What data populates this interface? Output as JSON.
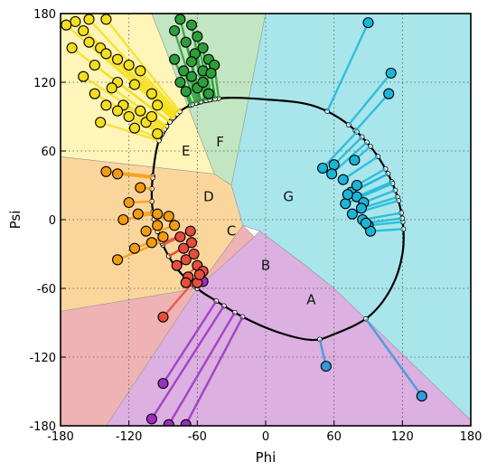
{
  "chart_data": {
    "type": "scatter",
    "xlabel": "Phi",
    "ylabel": "Psi",
    "xlim": [
      -180,
      180
    ],
    "ylim": [
      -180,
      180
    ],
    "xticks": [
      "-180",
      "-120",
      "-60",
      "0",
      "60",
      "120",
      "180"
    ],
    "yticks": [
      "-180",
      "-120",
      "-60",
      "0",
      "60",
      "120",
      "180"
    ],
    "grid": true,
    "regions": [
      {
        "label": "A",
        "color": "#b3d6f7",
        "label_at": [
          40,
          -70
        ],
        "polygon": [
          [
            -60,
            -60
          ],
          [
            180,
            -175
          ],
          [
            180,
            -180
          ],
          [
            -180,
            -180
          ],
          [
            -180,
            -100
          ]
        ]
      },
      {
        "label": "B",
        "color": "#dcb0e0",
        "label_at": [
          0,
          -40
        ],
        "polygon": [
          [
            -60,
            -60
          ],
          [
            -10,
            -15
          ],
          [
            -5,
            -10
          ],
          [
            35,
            -40
          ],
          [
            60,
            -60
          ],
          [
            180,
            -175
          ],
          [
            180,
            -180
          ],
          [
            -180,
            -180
          ],
          [
            -180,
            -100
          ]
        ]
      },
      {
        "label": "C",
        "color": "#f0b3b3",
        "label_at": [
          -30,
          -10
        ],
        "polygon": [
          [
            -60,
            -60
          ],
          [
            -20,
            -5
          ],
          [
            -10,
            -15
          ],
          [
            -60,
            -60
          ],
          [
            -140,
            -180
          ],
          [
            -180,
            -180
          ],
          [
            -180,
            -80
          ]
        ]
      },
      {
        "label": "D",
        "color": "#fbd69c",
        "label_at": [
          -50,
          20
        ],
        "polygon": [
          [
            -60,
            -60
          ],
          [
            -20,
            -5
          ],
          [
            -30,
            30
          ],
          [
            -45,
            40
          ],
          [
            -180,
            55
          ],
          [
            -180,
            -80
          ]
        ]
      },
      {
        "label": "E",
        "color": "#fff5b8",
        "label_at": [
          -70,
          60
        ],
        "polygon": [
          [
            -45,
            40
          ],
          [
            -100,
            180
          ],
          [
            -180,
            180
          ],
          [
            -180,
            55
          ]
        ]
      },
      {
        "label": "F",
        "color": "#c1e6c1",
        "label_at": [
          -40,
          68
        ],
        "polygon": [
          [
            -45,
            40
          ],
          [
            -100,
            180
          ],
          [
            0,
            180
          ],
          [
            -30,
            30
          ]
        ]
      },
      {
        "label": "G",
        "color": "#a8e6ec",
        "label_at": [
          20,
          20
        ],
        "polygon": [
          [
            -30,
            30
          ],
          [
            0,
            180
          ],
          [
            180,
            180
          ],
          [
            180,
            -175
          ],
          [
            60,
            -60
          ],
          [
            35,
            -40
          ],
          [
            -5,
            -10
          ],
          [
            -20,
            -5
          ]
        ]
      }
    ],
    "series": [
      {
        "color": "#1ab6d9",
        "points": [
          [
            90,
            172
          ],
          [
            110,
            128
          ],
          [
            108,
            110
          ],
          [
            60,
            48
          ],
          [
            50,
            45
          ],
          [
            58,
            40
          ],
          [
            68,
            35
          ],
          [
            78,
            52
          ],
          [
            75,
            24
          ],
          [
            80,
            20
          ],
          [
            86,
            15
          ],
          [
            84,
            10
          ],
          [
            76,
            5
          ],
          [
            85,
            0
          ],
          [
            90,
            -5
          ],
          [
            92,
            -10
          ],
          [
            88,
            -3
          ],
          [
            70,
            14
          ],
          [
            72,
            22
          ],
          [
            80,
            30
          ]
        ]
      },
      {
        "color": "#3498db",
        "points": [
          [
            137,
            -154
          ],
          [
            53,
            -128
          ]
        ]
      },
      {
        "color": "#9b2fc1",
        "points": [
          [
            -55,
            -54
          ],
          [
            -90,
            -143
          ],
          [
            -100,
            -174
          ],
          [
            -85,
            -179
          ],
          [
            -70,
            -179
          ]
        ]
      },
      {
        "color": "#e74c3c",
        "points": [
          [
            -90,
            -85
          ],
          [
            -60,
            -55
          ],
          [
            -75,
            -15
          ],
          [
            -65,
            -20
          ],
          [
            -70,
            -35
          ],
          [
            -60,
            -40
          ],
          [
            -55,
            -45
          ],
          [
            -68,
            -50
          ],
          [
            -72,
            -25
          ],
          [
            -63,
            -30
          ],
          [
            -58,
            -48
          ],
          [
            -66,
            -10
          ],
          [
            -78,
            -40
          ],
          [
            -70,
            -55
          ]
        ]
      },
      {
        "color": "#f39c12",
        "points": [
          [
            -140,
            42
          ],
          [
            -130,
            40
          ],
          [
            -110,
            28
          ],
          [
            -120,
            15
          ],
          [
            -112,
            5
          ],
          [
            -125,
            0
          ],
          [
            -95,
            -5
          ],
          [
            -85,
            3
          ],
          [
            -90,
            -15
          ],
          [
            -100,
            -20
          ],
          [
            -130,
            -35
          ],
          [
            -115,
            -25
          ],
          [
            -105,
            -10
          ],
          [
            -80,
            -5
          ],
          [
            -95,
            5
          ]
        ]
      },
      {
        "color": "#f4df1e",
        "points": [
          [
            -167,
            173
          ],
          [
            -160,
            165
          ],
          [
            -155,
            155
          ],
          [
            -145,
            150
          ],
          [
            -140,
            145
          ],
          [
            -130,
            140
          ],
          [
            -120,
            135
          ],
          [
            -110,
            130
          ],
          [
            -130,
            120
          ],
          [
            -115,
            118
          ],
          [
            -100,
            110
          ],
          [
            -95,
            100
          ],
          [
            -110,
            95
          ],
          [
            -120,
            90
          ],
          [
            -105,
            85
          ],
          [
            -115,
            80
          ],
          [
            -95,
            75
          ],
          [
            -100,
            90
          ],
          [
            -125,
            100
          ],
          [
            -135,
            115
          ],
          [
            -150,
            135
          ],
          [
            -160,
            125
          ],
          [
            -150,
            110
          ],
          [
            -140,
            100
          ],
          [
            -145,
            85
          ],
          [
            -130,
            95
          ],
          [
            -170,
            150
          ],
          [
            -175,
            170
          ],
          [
            -155,
            175
          ],
          [
            -140,
            175
          ]
        ]
      },
      {
        "color": "#2e9e3a",
        "points": [
          [
            -75,
            175
          ],
          [
            -65,
            170
          ],
          [
            -60,
            160
          ],
          [
            -70,
            155
          ],
          [
            -55,
            150
          ],
          [
            -62,
            145
          ],
          [
            -80,
            165
          ],
          [
            -50,
            140
          ],
          [
            -45,
            135
          ],
          [
            -55,
            130
          ],
          [
            -65,
            125
          ],
          [
            -72,
            130
          ],
          [
            -48,
            128
          ],
          [
            -60,
            115
          ],
          [
            -70,
            112
          ],
          [
            -55,
            120
          ],
          [
            -65,
            138
          ],
          [
            -75,
            120
          ],
          [
            -50,
            110
          ],
          [
            -80,
            140
          ]
        ]
      }
    ],
    "curve_points": [
      [
        -60,
        -60
      ],
      [
        -80,
        -40
      ],
      [
        -95,
        -10
      ],
      [
        -100,
        20
      ],
      [
        -96,
        60
      ],
      [
        -88,
        80
      ],
      [
        -70,
        98
      ],
      [
        -40,
        106
      ],
      [
        0,
        105
      ],
      [
        40,
        100
      ],
      [
        70,
        85
      ],
      [
        95,
        60
      ],
      [
        112,
        30
      ],
      [
        120,
        0
      ],
      [
        120,
        -30
      ],
      [
        110,
        -60
      ],
      [
        90,
        -85
      ],
      [
        60,
        -100
      ],
      [
        40,
        -105
      ],
      [
        10,
        -98
      ],
      [
        -20,
        -85
      ],
      [
        -45,
        -70
      ],
      [
        -60,
        -60
      ]
    ]
  }
}
